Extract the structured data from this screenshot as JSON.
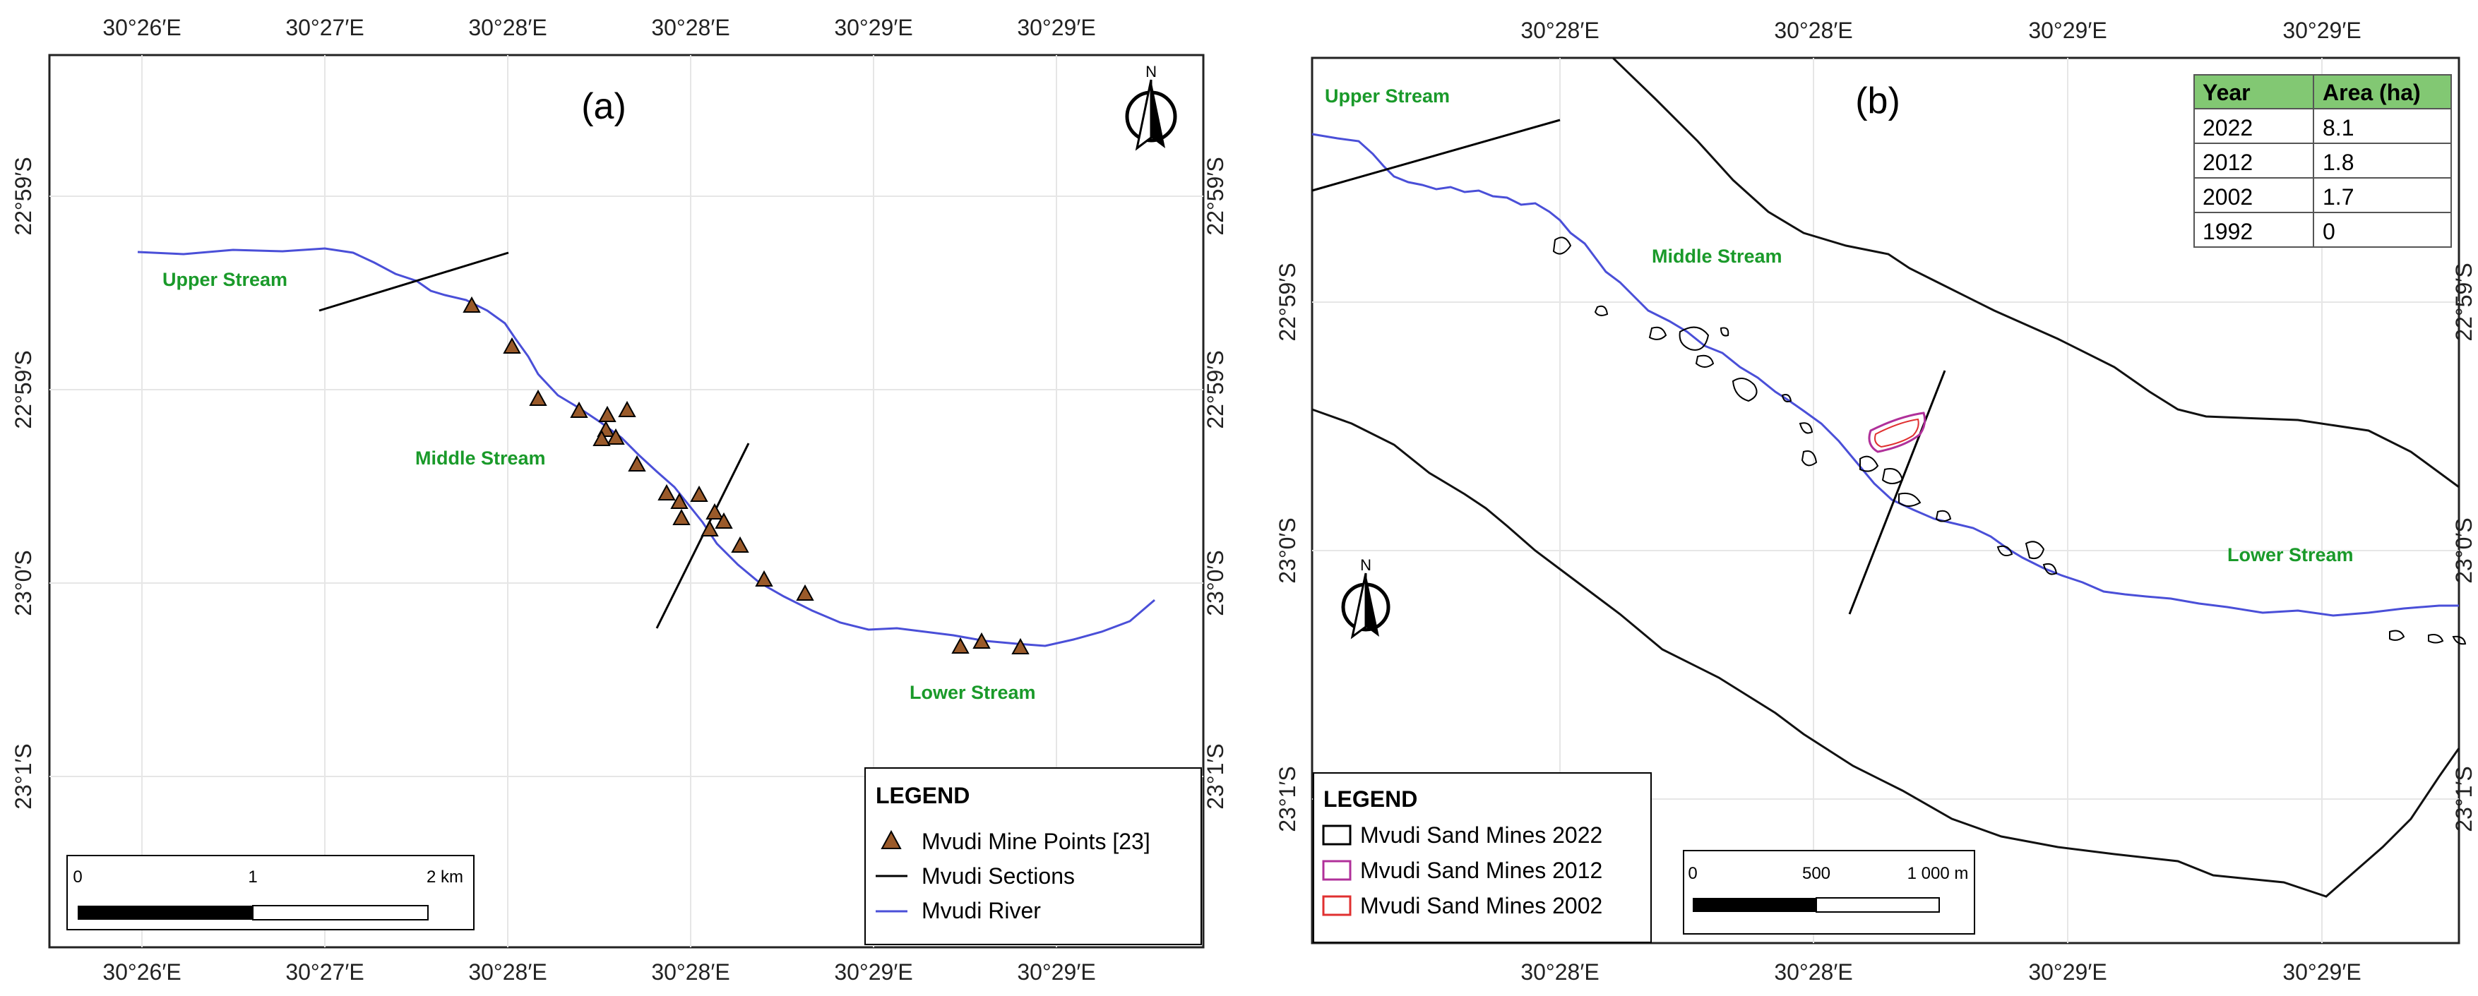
{
  "map_a": {
    "label": "(a)",
    "north_label": "N",
    "top_ticks": [
      "30°26′E",
      "30°27′E",
      "30°28′E",
      "30°28′E",
      "30°29′E",
      "30°29′E"
    ],
    "bottom_ticks": [
      "30°26′E",
      "30°27′E",
      "30°28′E",
      "30°28′E",
      "30°29′E",
      "30°29′E"
    ],
    "left_ticks": [
      "22°59′S",
      "22°59′S",
      "23°0′S",
      "23°1′S"
    ],
    "right_ticks": [
      "22°59′S",
      "22°59′S",
      "23°0′S",
      "23°1′S"
    ],
    "stream_labels": {
      "upper": "Upper Stream",
      "middle": "Middle Stream",
      "lower": "Lower Stream"
    },
    "legend": {
      "title": "LEGEND",
      "items": [
        {
          "label": "Mvudi Mine Points [23]",
          "symbol": "triangle"
        },
        {
          "label": "Mvudi Sections",
          "symbol": "black-line"
        },
        {
          "label": "Mvudi River",
          "symbol": "blue-line"
        }
      ]
    },
    "scale": {
      "labels": [
        "0",
        "1",
        "2 km"
      ]
    }
  },
  "map_b": {
    "label": "(b)",
    "north_label": "N",
    "top_ticks": [
      "30°28′E",
      "30°28′E",
      "30°29′E",
      "30°29′E"
    ],
    "bottom_ticks": [
      "30°28′E",
      "30°28′E",
      "30°29′E",
      "30°29′E"
    ],
    "left_ticks": [
      "22°59′S",
      "23°0′S",
      "23°1′S"
    ],
    "right_ticks": [
      "22°59′S",
      "23°0′S",
      "23°1′S"
    ],
    "stream_labels": {
      "upper": "Upper Stream",
      "middle": "Middle Stream",
      "lower": "Lower Stream"
    },
    "table": {
      "headers": [
        "Year",
        "Area (ha)"
      ],
      "rows": [
        [
          "2022",
          "8.1"
        ],
        [
          "2012",
          "1.8"
        ],
        [
          "2002",
          "1.7"
        ],
        [
          "1992",
          "0"
        ]
      ]
    },
    "legend": {
      "title": "LEGEND",
      "items": [
        {
          "label": "Mvudi Sand Mines 2022",
          "color": "#000000"
        },
        {
          "label": "Mvudi Sand Mines 2012",
          "color": "#b0309a"
        },
        {
          "label": "Mvudi Sand Mines 2002",
          "color": "#e03030"
        }
      ]
    },
    "scale": {
      "labels": [
        "0",
        "500",
        "1 000 m"
      ]
    }
  },
  "colors": {
    "river": "#4a4fd8",
    "stream_label": "#1a9a2a",
    "mine_point": "#9a5a2a",
    "header_fill": "#82c873"
  }
}
